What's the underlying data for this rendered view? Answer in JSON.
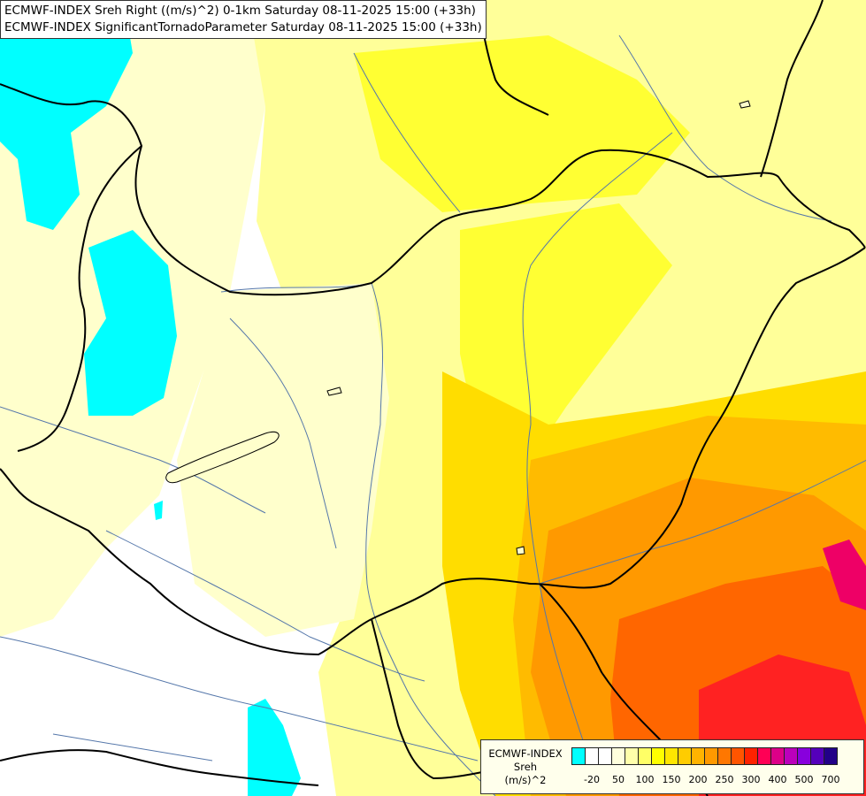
{
  "header": {
    "line1": "ECMWF-INDEX Sreh Right ((m/s)^2) 0-1km Saturday 08-11-2025 15:00 (+33h)",
    "line2": "ECMWF-INDEX SignificantTornadoParameter Saturday 08-11-2025 15:00 (+33h)"
  },
  "legend": {
    "caption_line1": "ECMWF-INDEX",
    "caption_line2": "Sreh",
    "caption_line3": "(m/s)^2",
    "colors": [
      "#00ffff",
      "#ffffff",
      "#ffffff",
      "#ffffdd",
      "#ffffaa",
      "#ffff66",
      "#ffff00",
      "#ffe600",
      "#ffcc00",
      "#ffb300",
      "#ff9900",
      "#ff7700",
      "#ff5500",
      "#ff2200",
      "#ff0055",
      "#dd0088",
      "#bb00bb",
      "#8800dd",
      "#5500bb",
      "#220088"
    ],
    "ticks": [
      "-20",
      "50",
      "100",
      "150",
      "200",
      "250",
      "300",
      "400",
      "500",
      "700"
    ]
  },
  "map": {
    "field_colors": {
      "cyan": "#00ffff",
      "pale": "#ffffcc",
      "light_yellow": "#ffff99",
      "yellow": "#ffff33",
      "gold": "#ffdd00",
      "orange_light": "#ffbb00",
      "orange": "#ff9900",
      "dark_orange": "#ff6600",
      "red": "#ff2222",
      "magenta": "#ee0066"
    },
    "border_color": "#000000",
    "river_color": "#5577aa"
  }
}
